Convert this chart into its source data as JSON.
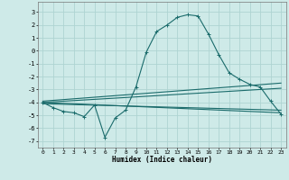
{
  "xlabel": "Humidex (Indice chaleur)",
  "xlim": [
    -0.5,
    23.5
  ],
  "ylim": [
    -7.5,
    3.8
  ],
  "yticks": [
    3,
    2,
    1,
    0,
    -1,
    -2,
    -3,
    -4,
    -5,
    -6,
    -7
  ],
  "xticks": [
    0,
    1,
    2,
    3,
    4,
    5,
    6,
    7,
    8,
    9,
    10,
    11,
    12,
    13,
    14,
    15,
    16,
    17,
    18,
    19,
    20,
    21,
    22,
    23
  ],
  "bg_color": "#ceeae8",
  "line_color": "#1a6b6b",
  "grid_color": "#aed4d2",
  "line1_x": [
    0,
    1,
    2,
    3,
    4,
    5,
    6,
    7,
    8,
    9,
    10,
    11,
    12,
    13,
    14,
    15,
    16,
    17,
    18,
    19,
    20,
    21,
    22,
    23
  ],
  "line1_y": [
    -4.0,
    -4.4,
    -4.7,
    -4.8,
    -5.1,
    -4.2,
    -6.7,
    -5.2,
    -4.6,
    -2.8,
    -0.1,
    1.5,
    2.0,
    2.6,
    2.8,
    2.7,
    1.3,
    -0.3,
    -1.7,
    -2.2,
    -2.6,
    -2.8,
    -3.9,
    -4.9
  ],
  "line2_x": [
    0,
    23
  ],
  "line2_y": [
    -4.0,
    -4.8
  ],
  "line3_x": [
    0,
    23
  ],
  "line3_y": [
    -3.9,
    -2.5
  ],
  "line4_x": [
    0,
    23
  ],
  "line4_y": [
    -4.0,
    -2.9
  ],
  "line5_x": [
    0,
    23
  ],
  "line5_y": [
    -4.1,
    -4.6
  ]
}
